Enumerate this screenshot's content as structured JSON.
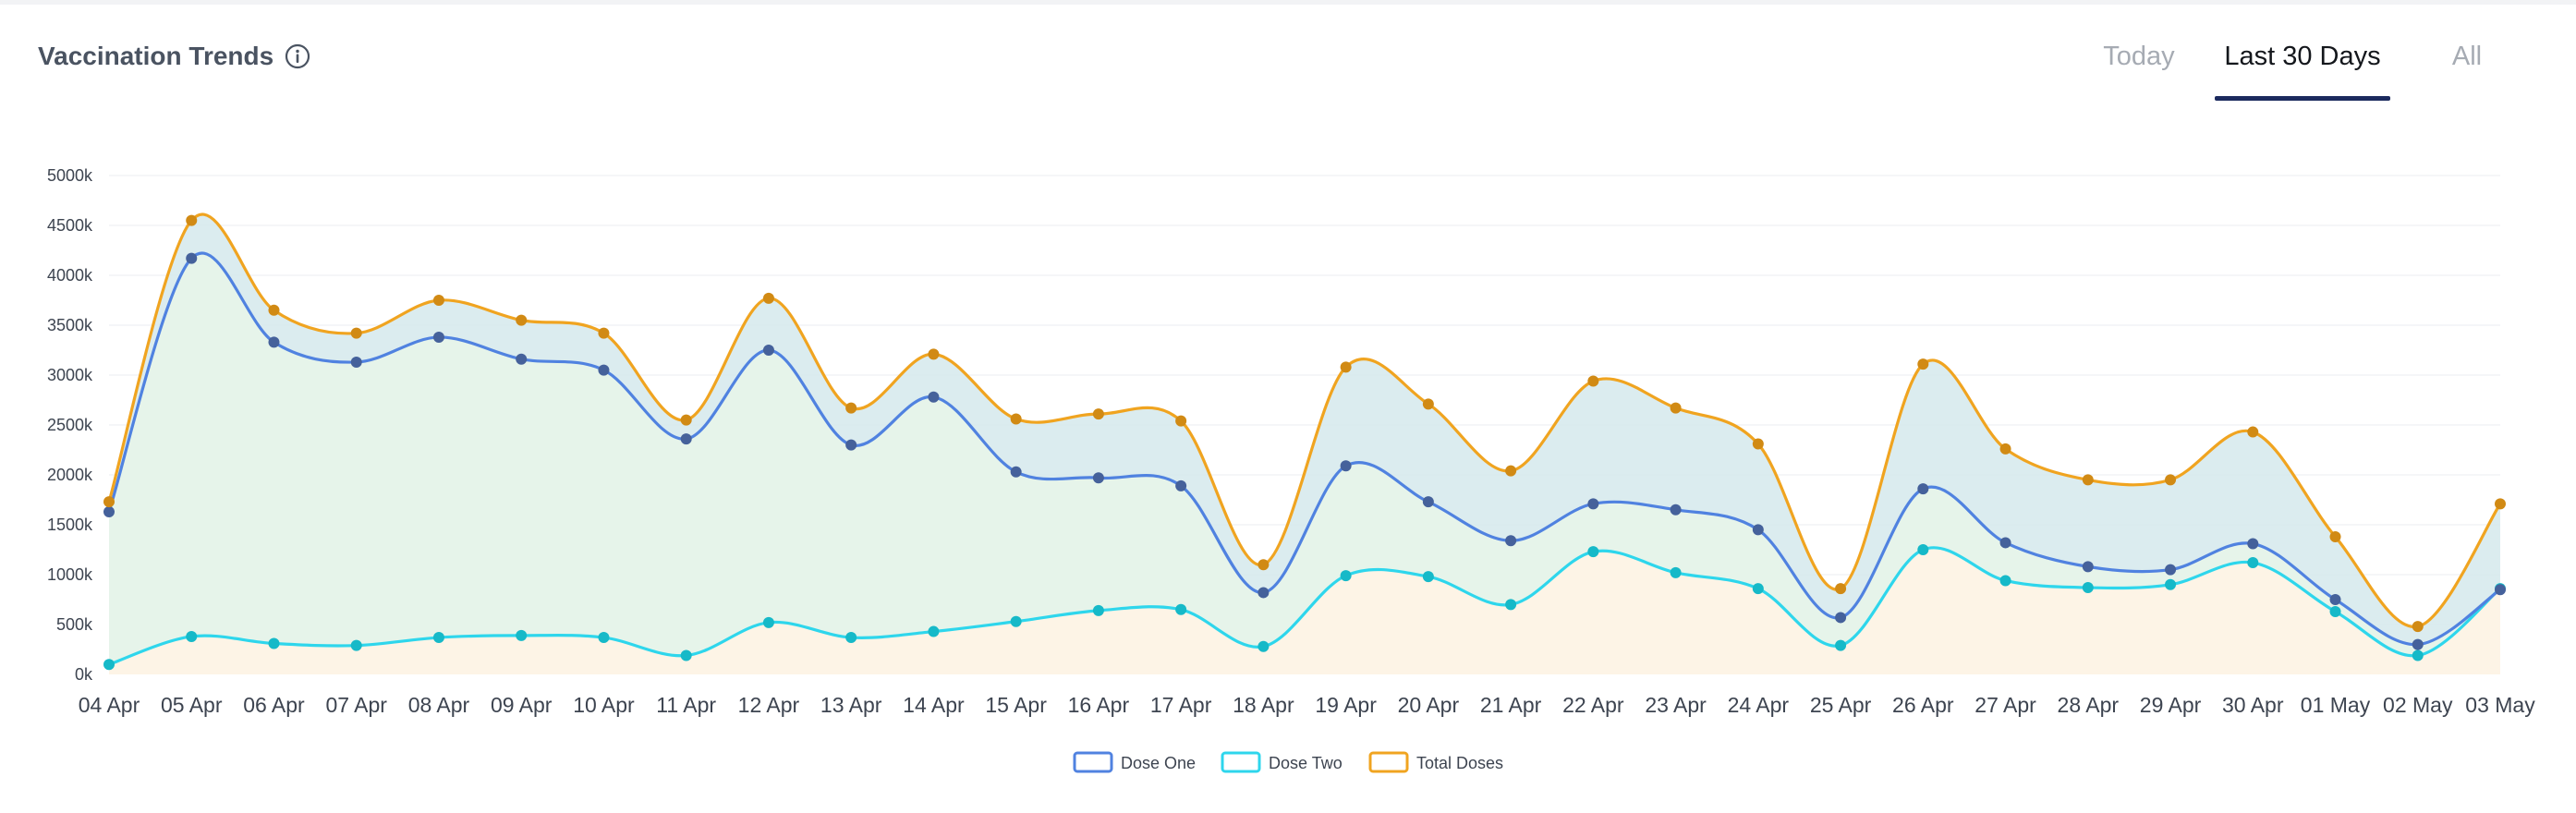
{
  "header": {
    "title": "Vaccination Trends",
    "info_icon": "info-icon"
  },
  "tabs": [
    {
      "label": "Today",
      "active": false
    },
    {
      "label": "Last 30 Days",
      "active": true
    },
    {
      "label": "All",
      "active": false
    }
  ],
  "chart_data": {
    "type": "area",
    "title": "",
    "xlabel": "",
    "ylabel": "",
    "ylim": [
      0,
      5000
    ],
    "y_ticks": [
      "0k",
      "500k",
      "1000k",
      "1500k",
      "2000k",
      "2500k",
      "3000k",
      "3500k",
      "4000k",
      "4500k",
      "5000k"
    ],
    "grid": true,
    "legend_position": "bottom-center",
    "categories": [
      "04 Apr",
      "05 Apr",
      "06 Apr",
      "07 Apr",
      "08 Apr",
      "09 Apr",
      "10 Apr",
      "11 Apr",
      "12 Apr",
      "13 Apr",
      "14 Apr",
      "15 Apr",
      "16 Apr",
      "17 Apr",
      "18 Apr",
      "19 Apr",
      "20 Apr",
      "21 Apr",
      "22 Apr",
      "23 Apr",
      "24 Apr",
      "25 Apr",
      "26 Apr",
      "27 Apr",
      "28 Apr",
      "29 Apr",
      "30 Apr",
      "01 May",
      "02 May",
      "03 May"
    ],
    "series": [
      {
        "name": "Dose One",
        "line_color": "#5082e0",
        "marker_color": "#45619b",
        "fill_color": "#e6f4ea",
        "values": [
          1630,
          4170,
          3330,
          3130,
          3380,
          3160,
          3050,
          2360,
          3250,
          2300,
          2780,
          2030,
          1970,
          1890,
          820,
          2090,
          1730,
          1340,
          1710,
          1650,
          1450,
          570,
          1860,
          1320,
          1080,
          1050,
          1310,
          750,
          300,
          850
        ]
      },
      {
        "name": "Dose Two",
        "line_color": "#2ed6ec",
        "marker_color": "#16b9c8",
        "fill_color": "#fdf4e6",
        "values": [
          100,
          380,
          310,
          290,
          370,
          390,
          370,
          190,
          520,
          370,
          430,
          530,
          640,
          650,
          280,
          990,
          980,
          700,
          1230,
          1020,
          860,
          290,
          1250,
          940,
          870,
          900,
          1120,
          630,
          190,
          860
        ]
      },
      {
        "name": "Total Doses",
        "line_color": "#f0a420",
        "marker_color": "#d18a14",
        "fill_color": "#d5e9ec",
        "values": [
          1730,
          4550,
          3650,
          3420,
          3750,
          3550,
          3420,
          2550,
          3770,
          2670,
          3210,
          2560,
          2610,
          2540,
          1100,
          3080,
          2710,
          2040,
          2940,
          2670,
          2310,
          860,
          3110,
          2260,
          1950,
          1950,
          2430,
          1380,
          480,
          1710
        ]
      }
    ]
  }
}
